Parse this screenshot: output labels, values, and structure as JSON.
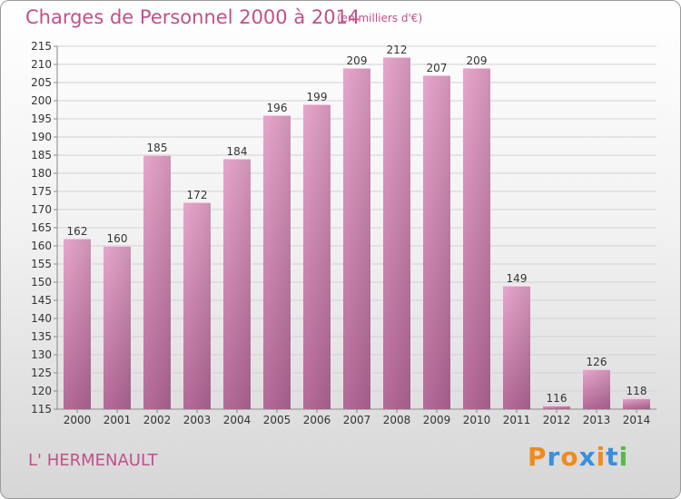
{
  "header": {
    "title": "Charges de Personnel 2000 à 2014",
    "subtitle": "(en milliers d'€)"
  },
  "commune": "L' HERMENAULT",
  "logo": {
    "text": "Proxiti",
    "colors": [
      "#f08a1c",
      "#3a8fd8",
      "#f08a1c",
      "#3a8fd8",
      "#f08a1c",
      "#3a8fd8",
      "#58b848"
    ]
  },
  "chart_data": {
    "type": "bar",
    "categories": [
      "2000",
      "2001",
      "2002",
      "2003",
      "2004",
      "2005",
      "2006",
      "2007",
      "2008",
      "2009",
      "2010",
      "2011",
      "2012",
      "2013",
      "2014"
    ],
    "values": [
      162,
      160,
      185,
      172,
      184,
      196,
      199,
      209,
      212,
      207,
      209,
      149,
      116,
      126,
      118
    ],
    "ylim": [
      115,
      215
    ],
    "yticks": [
      115,
      120,
      125,
      130,
      135,
      140,
      145,
      150,
      155,
      160,
      165,
      170,
      175,
      180,
      185,
      190,
      195,
      200,
      205,
      210,
      215
    ],
    "grid": true,
    "bar_color": "#d98ab4"
  }
}
